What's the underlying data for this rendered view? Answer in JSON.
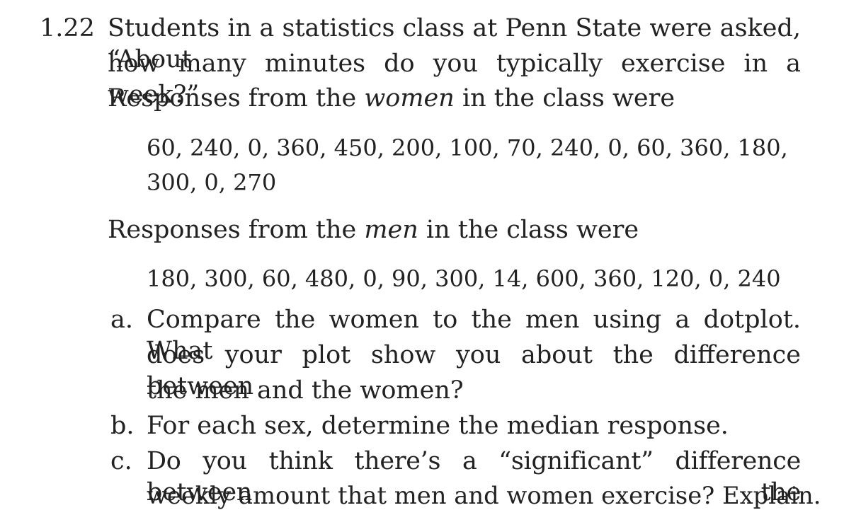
{
  "problem": {
    "number": "1.22",
    "intro_lines": [
      "Students in a statistics class at Penn State were asked, “About",
      "how many minutes do you typically exercise in a week?”"
    ],
    "women_lead": "Responses from the ",
    "women_word": "women",
    "women_tail": " in the class were",
    "women_data_lines": [
      "60, 240, 0, 360, 450, 200, 100, 70, 240, 0, 60, 360, 180,",
      "300, 0, 270"
    ],
    "men_lead": "Responses from the ",
    "men_word": "men",
    "men_tail": " in the class were",
    "men_data_line": "180, 300, 60, 480, 0, 90, 300, 14, 600, 360, 120, 0, 240",
    "parts": [
      {
        "letter": "a.",
        "lines": [
          "Compare the women to the men using a dotplot. What",
          "does your plot show you about the difference between",
          "the men and the women?"
        ]
      },
      {
        "letter": "b.",
        "lines": [
          "For each sex, determine the median response."
        ]
      },
      {
        "letter": "c.",
        "lines": [
          "Do you think there’s a “significant” difference between the",
          "weekly amount that men and women exercise? Explain."
        ]
      }
    ]
  }
}
